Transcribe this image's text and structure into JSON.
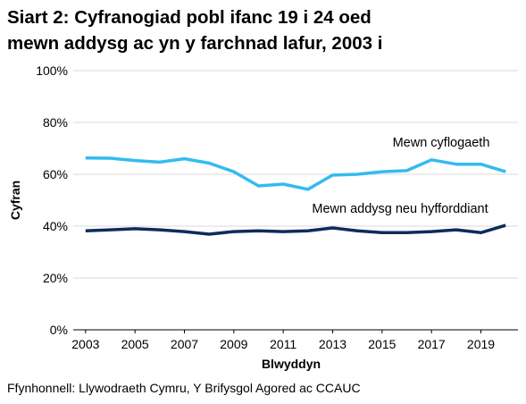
{
  "title_lines": [
    "Siart 2: Cyfranogiad pobl ifanc 19 i 24 oed",
    "mewn addysg ac yn y farchnad lafur, 2003 i"
  ],
  "source": "Ffynhonnell: Llywodraeth Cymru, Y Brifysgol Agored ac CCAUC",
  "chart_data": {
    "type": "line",
    "title": "Siart 2: Cyfranogiad pobl ifanc 19 i 24 oed mewn addysg ac yn y farchnad lafur, 2003 i",
    "xlabel": "Blwyddyn",
    "ylabel": "Cyfran",
    "x": [
      2003,
      2004,
      2005,
      2006,
      2007,
      2008,
      2009,
      2010,
      2011,
      2012,
      2013,
      2014,
      2015,
      2016,
      2017,
      2018,
      2019,
      2020
    ],
    "xticks": [
      "2003",
      "2005",
      "2007",
      "2009",
      "2011",
      "2013",
      "2015",
      "2017",
      "2019"
    ],
    "yticks": [
      "0%",
      "20%",
      "40%",
      "60%",
      "80%",
      "100%"
    ],
    "ylim": [
      0,
      100
    ],
    "grid": "horizontal",
    "series": [
      {
        "name": "Mewn cyflogaeth",
        "color": "#33bbf0",
        "values": [
          66.3,
          66.2,
          65.3,
          64.7,
          66.0,
          64.3,
          61.0,
          55.5,
          56.2,
          54.2,
          59.7,
          60.0,
          61.0,
          61.4,
          65.6,
          63.9,
          63.9,
          61.0
        ]
      },
      {
        "name": "Mewn addysg neu hyfforddiant",
        "color": "#0d2b5c",
        "values": [
          38.2,
          38.6,
          39.0,
          38.6,
          37.9,
          36.9,
          37.9,
          38.2,
          37.9,
          38.2,
          39.3,
          38.2,
          37.5,
          37.5,
          37.9,
          38.6,
          37.5,
          40.3
        ]
      }
    ]
  }
}
